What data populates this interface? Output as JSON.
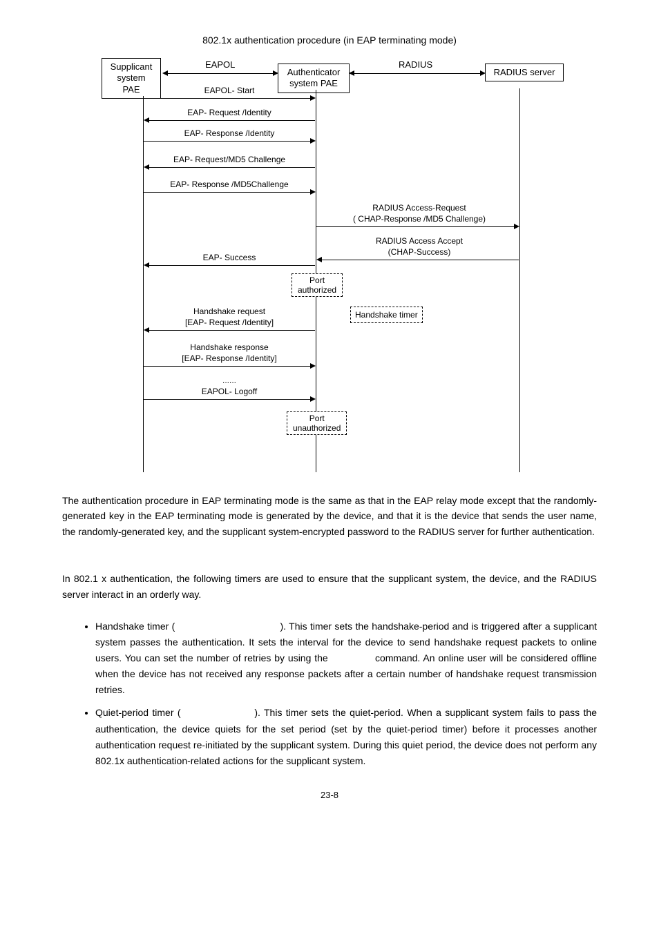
{
  "figureCaption": "802.1x authentication procedure (in EAP terminating mode)",
  "boxes": {
    "supplicant": "Supplicant\nsystem\nPAE",
    "authenticator": "Authenticator\nsystem PAE",
    "radius": "RADIUS server"
  },
  "proto": {
    "eapol": "EAPOL",
    "radius": "RADIUS"
  },
  "msgs": {
    "start": "EAPOL- Start",
    "reqId": "EAP- Request /Identity",
    "respId": "EAP- Response /Identity",
    "reqMd5": "EAP- Request/MD5 Challenge",
    "respMd5": "EAP- Response /MD5Challenge",
    "accReq1": "RADIUS Access-Request",
    "accReq2": "( CHAP-Response /MD5 Challenge)",
    "accAcc1": "RADIUS Access Accept",
    "accAcc2": "(CHAP-Success)",
    "eapSucc": "EAP- Success",
    "portAuth": "Port\nauthorized",
    "hsReq1": "Handshake request",
    "hsReq2": "[EAP- Request /Identity]",
    "hsTimer": "Handshake timer",
    "hsResp1": "Handshake response",
    "hsResp2": "[EAP- Response /Identity]",
    "dots": "......",
    "logoff": "EAPOL- Logoff",
    "portUnauth": "Port\nunauthorized"
  },
  "para1": "The authentication procedure in EAP terminating mode is the same as that in the EAP relay mode except that the randomly-generated key in the EAP terminating mode is generated by the device, and that it is the device that sends the user name, the randomly-generated key, and the supplicant system-encrypted password to the RADIUS server for further authentication.",
  "para2": "In 802.1 x authentication, the following timers are used to ensure that the supplicant system, the device, and the RADIUS server interact in an orderly way.",
  "b1": "Handshake timer (                                   ). This timer sets the handshake-period and is triggered after a supplicant system passes the authentication. It sets the interval for the device to send handshake request packets to online users. You can set the number of retries by using the              command. An online user will be considered offline when the device has not received any response packets after a certain number of handshake request transmission retries.",
  "b2": "Quiet-period timer (                    ). This timer sets the quiet-period. When a supplicant system fails to pass the authentication, the device quiets for the set period (set by the quiet-period timer) before it processes another authentication request re-initiated by the supplicant system. During this quiet period, the device does not perform any 802.1x authentication-related actions for the supplicant system.",
  "pagenum": "23-8"
}
